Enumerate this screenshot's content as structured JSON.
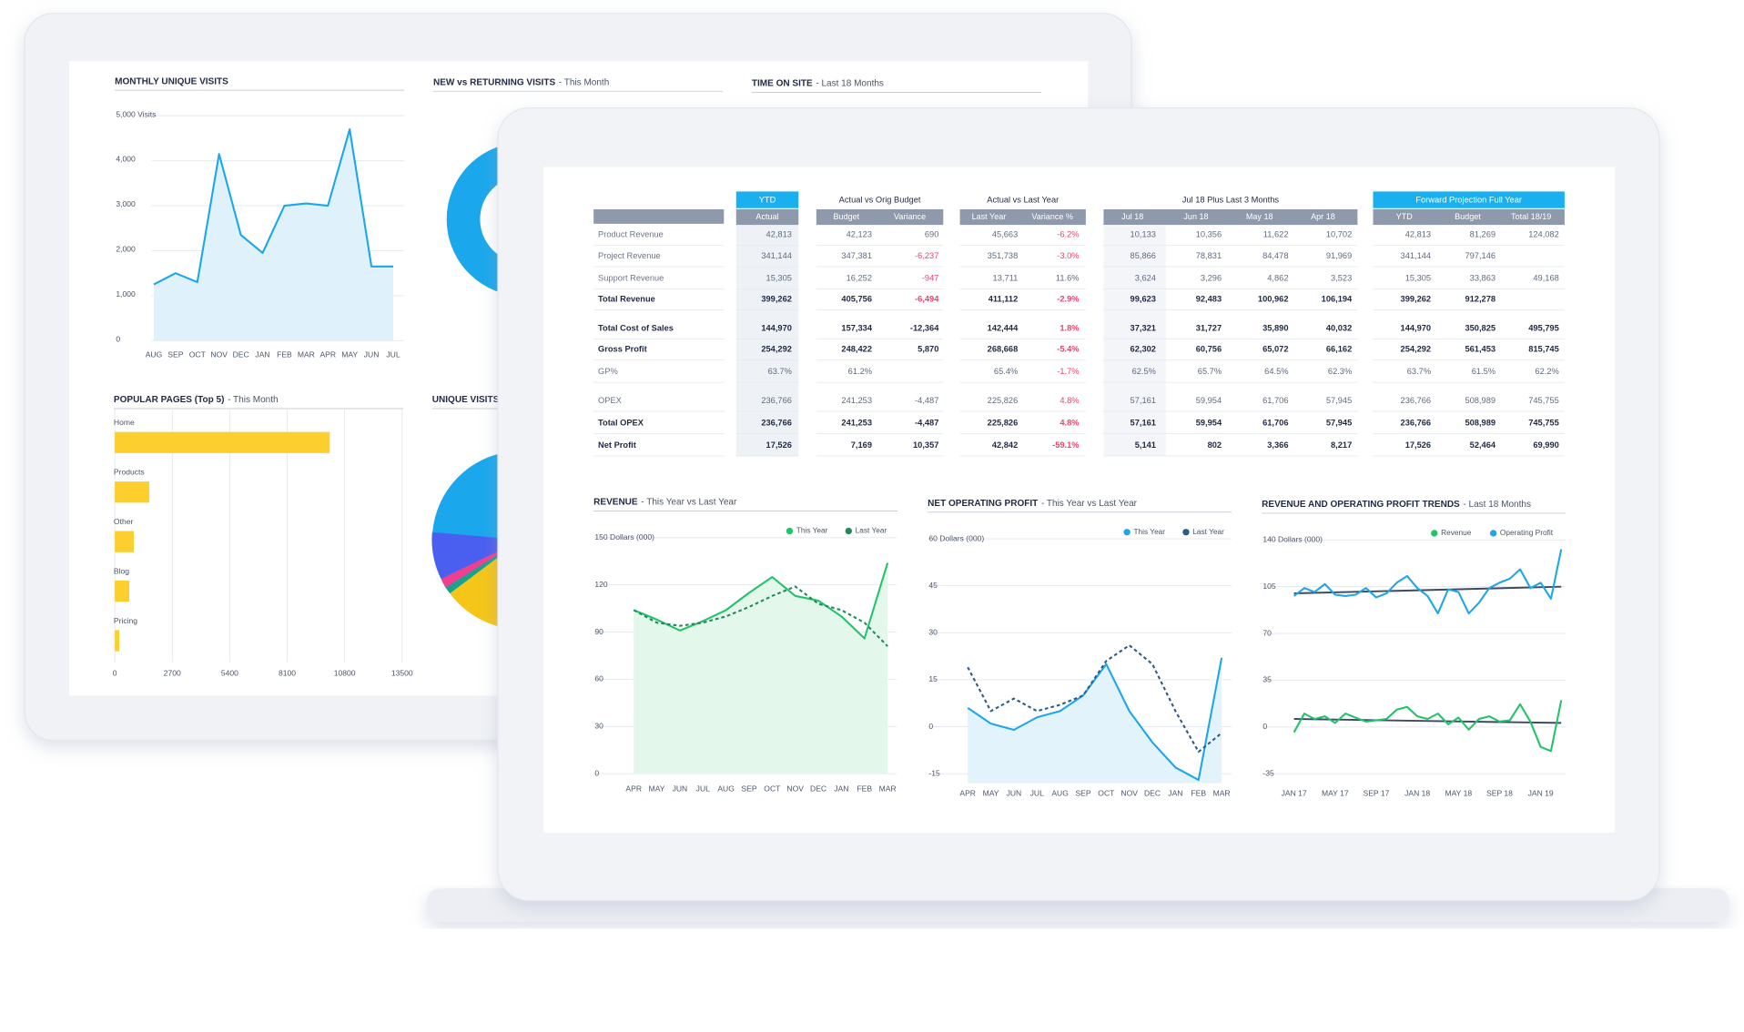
{
  "back_dashboard": {
    "monthly_visits": {
      "type": "line",
      "title": "MONTHLY UNIQUE VISITS",
      "categories": [
        "AUG",
        "SEP",
        "OCT",
        "NOV",
        "DEC",
        "JAN",
        "FEB",
        "MAR",
        "APR",
        "MAY",
        "JUN",
        "JUL"
      ],
      "series": [
        {
          "color": "#1aa7ec",
          "area": true,
          "area_color": "#dff1fb",
          "values": [
            1250,
            1500,
            1300,
            4150,
            2350,
            1950,
            3000,
            3050,
            3000,
            4700,
            1650,
            1650
          ]
        }
      ],
      "ylim": [
        0,
        5000
      ],
      "yticks": [
        {
          "value": 5000,
          "label": "5,000 Visits"
        },
        {
          "value": 4000,
          "label": "4,000"
        },
        {
          "value": 3000,
          "label": "3,000"
        },
        {
          "value": 2000,
          "label": "2,000"
        },
        {
          "value": 1000,
          "label": "1,000"
        },
        0
      ]
    },
    "new_vs_returning": {
      "title": "NEW vs RETURNING VISITS",
      "subtitle": "- This Month"
    },
    "time_on_site": {
      "title": "TIME ON SITE",
      "subtitle": "- Last 18 Months"
    },
    "popular_pages": {
      "type": "hbar",
      "title": "POPULAR PAGES (Top 5)",
      "subtitle": "- This Month",
      "categories": [
        "Home",
        "Products",
        "Other",
        "Blog",
        "Pricing"
      ],
      "values": [
        10100,
        1620,
        890,
        680,
        210
      ],
      "color": "#fccf2e",
      "xlim": [
        0,
        13500
      ],
      "xticks": [
        0,
        2700,
        5400,
        8100,
        10800,
        13500
      ]
    },
    "unique_visits": {
      "title": "UNIQUE VISITS"
    }
  },
  "front_dashboard": {
    "table": {
      "groups": [
        {
          "title": "YTD",
          "color": "#1ab0f0",
          "columns": [
            "Actual"
          ]
        },
        {
          "title": "Actual vs Orig Budget",
          "columns": [
            "Budget",
            "Variance"
          ]
        },
        {
          "title": "Actual vs Last Year",
          "columns": [
            "Last Year",
            "Variance %"
          ]
        },
        {
          "title": "Jul 18 Plus Last 3 Months",
          "columns": [
            "Jul 18",
            "Jun 18",
            "May 18",
            "Apr 18"
          ]
        },
        {
          "title": "Forward Projection Full Year",
          "color": "#1ab0f0",
          "columns": [
            "YTD",
            "Budget",
            "Total 18/19"
          ]
        }
      ],
      "rows": [
        {
          "label": "Product Revenue",
          "bold": false,
          "cells": [
            "42,813",
            "42,123",
            "690",
            "45,663",
            {
              "text": "-6.2%",
              "color": "#e8436b"
            },
            "10,133",
            "10,356",
            "11,622",
            "10,702",
            "42,813",
            "81,269",
            "124,082"
          ]
        },
        {
          "label": "Project Revenue",
          "bold": false,
          "cells": [
            "341,144",
            "347,381",
            {
              "text": "-6,237",
              "color": "#e8436b"
            },
            "351,738",
            {
              "text": "-3.0%",
              "color": "#e8436b"
            },
            "85,866",
            "78,831",
            "84,478",
            "91,969",
            "341,144",
            "797,146",
            null
          ]
        },
        {
          "label": "Support Revenue",
          "bold": false,
          "cells": [
            "15,305",
            "16,252",
            {
              "text": "-947",
              "color": "#e8436b"
            },
            "13,711",
            "11.6%",
            "3,624",
            "3,296",
            "4,862",
            "3,523",
            "15,305",
            "33,863",
            "49,168"
          ]
        },
        {
          "label": "Total Revenue",
          "bold": true,
          "cells": [
            "399,262",
            "405,756",
            {
              "text": "-6,494",
              "color": "#e8436b"
            },
            "411,112",
            {
              "text": "-2.9%",
              "color": "#e8436b"
            },
            "99,623",
            "92,483",
            "100,962",
            "106,194",
            "399,262",
            "912,278",
            null
          ]
        },
        {
          "label": "Total Cost of Sales",
          "bold": true,
          "cells": [
            "144,970",
            "157,334",
            "-12,364",
            "142,444",
            {
              "text": "1.8%",
              "color": "#e8436b"
            },
            "37,321",
            "31,727",
            "35,890",
            "40,032",
            "144,970",
            "350,825",
            "495,795"
          ]
        },
        {
          "label": "Gross Profit",
          "bold": true,
          "cells": [
            "254,292",
            "248,422",
            "5,870",
            "268,668",
            {
              "text": "-5.4%",
              "color": "#e8436b"
            },
            "62,302",
            "60,756",
            "65,072",
            "66,162",
            "254,292",
            "561,453",
            "815,745"
          ]
        },
        {
          "label": "GP%",
          "bold": false,
          "cells": [
            "63.7%",
            "61.2%",
            null,
            "65.4%",
            {
              "text": "-1.7%",
              "color": "#e8436b"
            },
            "62.5%",
            "65.7%",
            "64.5%",
            "62.3%",
            "63.7%",
            "61.5%",
            "62.2%"
          ]
        },
        {
          "label": "OPEX",
          "bold": false,
          "cells": [
            "236,766",
            "241,253",
            "-4,487",
            "225,826",
            {
              "text": "4.8%",
              "color": "#e8436b"
            },
            "57,161",
            "59,954",
            "61,706",
            "57,945",
            "236,766",
            "508,989",
            "745,755"
          ]
        },
        {
          "label": "Total OPEX",
          "bold": true,
          "cells": [
            "236,766",
            "241,253",
            "-4,487",
            "225,826",
            {
              "text": "4.8%",
              "color": "#e8436b"
            },
            "57,161",
            "59,954",
            "61,706",
            "57,945",
            "236,766",
            "508,989",
            "745,755"
          ]
        },
        {
          "label": "Net Profit",
          "bold": true,
          "cells": [
            "17,526",
            "7,169",
            "10,357",
            "42,842",
            {
              "text": "-59.1%",
              "color": "#e8436b"
            },
            "5,141",
            "802",
            "3,366",
            "8,217",
            "17,526",
            "52,464",
            "69,990"
          ]
        }
      ]
    },
    "charts": [
      {
        "type": "line",
        "title": "REVENUE",
        "subtitle": "- This Year vs Last Year",
        "categories": [
          "APR",
          "MAY",
          "JUN",
          "JUL",
          "AUG",
          "SEP",
          "OCT",
          "NOV",
          "DEC",
          "JAN",
          "FEB",
          "MAR"
        ],
        "series": [
          {
            "name": "This Year",
            "color": "#22c36a",
            "area": true,
            "area_color": "#e4f7eb",
            "values": [
              104,
              98,
              91,
              97,
              104,
              115,
              125,
              113,
              110,
              100,
              86,
              134
            ]
          },
          {
            "name": "Last Year",
            "color": "#23885a",
            "dashed": true,
            "values": [
              104,
              96,
              94,
              96,
              100,
              106,
              113,
              119,
              108,
              104,
              96,
              81
            ]
          }
        ],
        "ylim": [
          0,
          150
        ],
        "yticks": [
          {
            "value": 150,
            "label": "150 Dollars (000)"
          },
          120,
          90,
          60,
          30,
          0
        ]
      },
      {
        "type": "line",
        "title": "NET OPERATING PROFIT",
        "subtitle": "- This Year vs Last Year",
        "categories": [
          "APR",
          "MAY",
          "JUN",
          "JUL",
          "AUG",
          "SEP",
          "OCT",
          "NOV",
          "DEC",
          "JAN",
          "FEB",
          "MAR"
        ],
        "series": [
          {
            "name": "This Year",
            "color": "#1ea6ea",
            "area": true,
            "area_color": "#e3f3fc",
            "values": [
              6,
              1,
              -1,
              3,
              5,
              10,
              20,
              5,
              -5,
              -13,
              -17,
              22
            ]
          },
          {
            "name": "Last Year",
            "color": "#2a5c88",
            "dashed": true,
            "values": [
              19,
              5,
              9,
              5,
              7,
              10,
              21,
              26,
              20,
              5,
              -8,
              -2
            ]
          }
        ],
        "ylim": [
          -18,
          60
        ],
        "yticks": [
          {
            "value": 60,
            "label": "60 Dollars (000)"
          },
          45,
          30,
          15,
          0,
          -15
        ]
      },
      {
        "type": "line",
        "title": "REVENUE AND OPERATING PROFIT TRENDS",
        "subtitle": "- Last 18 Months",
        "categories": [
          "JAN 17",
          null,
          null,
          null,
          "MAY 17",
          null,
          null,
          null,
          "SEP 17",
          null,
          null,
          null,
          "JAN 18",
          null,
          null,
          null,
          "MAY 18",
          null,
          null,
          null,
          "SEP 18",
          null,
          null,
          null,
          "JAN 19",
          null,
          null
        ],
        "series": [
          {
            "name": "Revenue",
            "color": "#22c36a",
            "values": [
              -4,
              10,
              6,
              8,
              3,
              10,
              7,
              4,
              5,
              6,
              13,
              15,
              8,
              6,
              10,
              2,
              7,
              -2,
              6,
              8,
              4,
              5,
              17,
              4,
              -15,
              -18,
              20
            ]
          },
          {
            "name": "Operating Profit",
            "color": "#1ea6ea",
            "values": [
              98,
              104,
              101,
              107,
              99,
              98,
              99,
              104,
              97,
              100,
              108,
              113,
              104,
              98,
              85,
              103,
              101,
              85,
              93,
              104,
              108,
              111,
              118,
              104,
              108,
              96,
              133
            ]
          }
        ],
        "trend_lines": [
          {
            "color": "#3d4a66",
            "values": [
              100,
              105
            ]
          },
          {
            "color": "#3d4a66",
            "values": [
              6,
              3
            ]
          }
        ],
        "ylim": [
          -35,
          140
        ],
        "yticks": [
          {
            "value": 140,
            "label": "140 Dollars (000)"
          },
          105,
          70,
          35,
          0,
          -35
        ]
      }
    ]
  }
}
